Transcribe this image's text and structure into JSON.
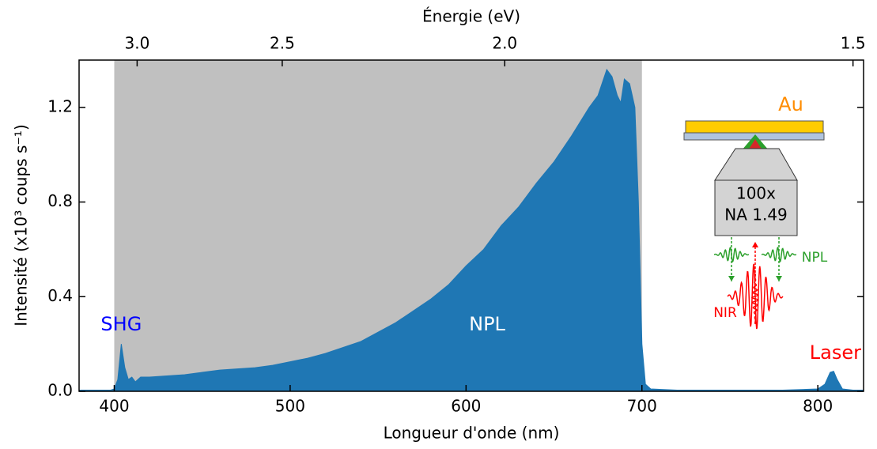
{
  "chart_data": {
    "type": "area",
    "x_label": "Longueur d'onde (nm)",
    "y_label": "Intensité (x10³ coups s⁻¹)",
    "x2_label": "Énergie (eV)",
    "xlim": [
      380,
      826
    ],
    "ylim": [
      0,
      1.4
    ],
    "xticks": [
      400,
      500,
      600,
      700,
      800
    ],
    "yticks": [
      {
        "value": 0,
        "label": "0.0"
      },
      {
        "value": 0.4,
        "label": "0.4"
      },
      {
        "value": 0.8,
        "label": "0.8"
      },
      {
        "value": 1.2,
        "label": "1.2"
      }
    ],
    "x2ticks": [
      {
        "value": 413,
        "label": "3.0"
      },
      {
        "value": 495.5,
        "label": "2.5"
      },
      {
        "value": 622,
        "label": "2.0"
      },
      {
        "value": 820,
        "label": "1.5"
      }
    ],
    "shaded_region": [
      400,
      700
    ],
    "shade_color": "#c0c0c0",
    "color": "#1f77b4",
    "x": [
      380,
      390,
      398,
      400,
      402,
      404,
      406,
      408,
      410,
      412,
      415,
      420,
      430,
      440,
      450,
      460,
      470,
      480,
      490,
      500,
      510,
      520,
      530,
      540,
      550,
      560,
      570,
      580,
      590,
      600,
      610,
      620,
      630,
      640,
      650,
      660,
      670,
      675,
      680,
      683,
      686,
      688,
      690,
      693,
      696,
      698,
      700,
      702,
      705,
      720,
      780,
      800,
      804,
      807,
      809,
      811,
      814,
      820,
      826
    ],
    "values": [
      0.005,
      0.005,
      0.005,
      0.01,
      0.05,
      0.2,
      0.1,
      0.05,
      0.06,
      0.04,
      0.06,
      0.06,
      0.065,
      0.07,
      0.08,
      0.09,
      0.095,
      0.1,
      0.11,
      0.125,
      0.14,
      0.16,
      0.185,
      0.21,
      0.25,
      0.29,
      0.34,
      0.39,
      0.45,
      0.53,
      0.6,
      0.7,
      0.78,
      0.88,
      0.97,
      1.08,
      1.2,
      1.25,
      1.36,
      1.33,
      1.25,
      1.22,
      1.32,
      1.3,
      1.2,
      0.8,
      0.2,
      0.03,
      0.01,
      0.005,
      0.005,
      0.01,
      0.03,
      0.08,
      0.085,
      0.05,
      0.01,
      0.005,
      0.005
    ],
    "annotations": [
      {
        "text": "SHG",
        "x": 404,
        "y": 0.28,
        "color": "#0000ff"
      },
      {
        "text": "NPL",
        "x": 612,
        "y": 0.28,
        "color": "#ffffff"
      },
      {
        "text": "Laser",
        "x": 810,
        "y": 0.16,
        "color": "#ff0000"
      }
    ]
  },
  "inset": {
    "metal": "Au",
    "objective_line1": "100x",
    "objective_line2": "NA 1.49",
    "emission": "NPL",
    "excitation": "NIR"
  }
}
